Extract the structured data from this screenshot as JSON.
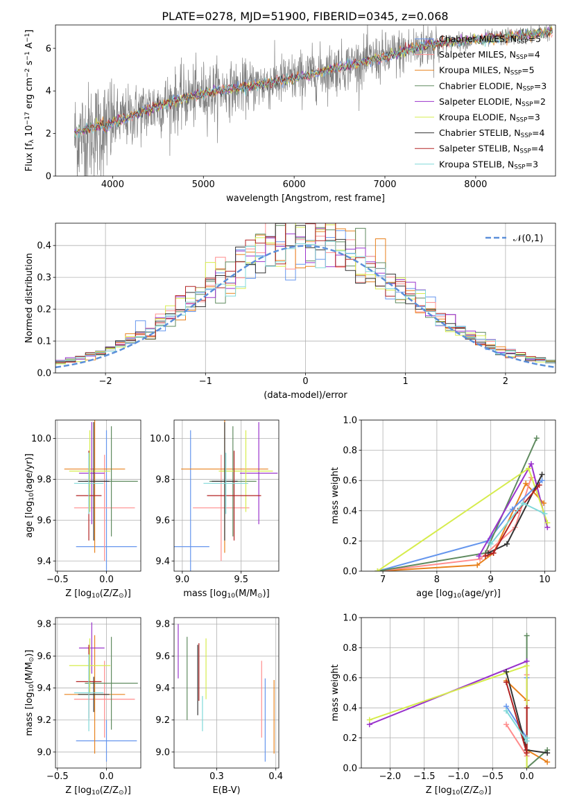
{
  "title": "PLATE=0278, MJD=51900, FIBERID=0345, z=0.068",
  "palette": [
    "#6495ed",
    "#ff8c8c",
    "#e8811c",
    "#5f8a5f",
    "#9932cc",
    "#d6ec4c",
    "#333333",
    "#b22222",
    "#7fd8d8",
    "#7f7f7f"
  ],
  "chart_data": [
    {
      "id": "spectrum",
      "type": "line",
      "xlabel": "wavelength [Angstrom, rest frame]",
      "ylabel": "Flux [f$_\\lambda$ 10$^{-17}$ erg cm$^{-2}$ s$^{-1}$ A$^{-1}$]",
      "xlim": [
        3370,
        8880
      ],
      "ylim": [
        0,
        7.1
      ],
      "xticks": [
        4000,
        5000,
        6000,
        7000,
        8000
      ],
      "yticks": [
        0,
        2,
        4,
        6
      ],
      "data_color": "#7f7f7f",
      "observed_trend": [
        [
          3580,
          1.8
        ],
        [
          3900,
          2.2
        ],
        [
          4000,
          2.5
        ],
        [
          4500,
          3.3
        ],
        [
          5000,
          3.9
        ],
        [
          5500,
          4.2
        ],
        [
          6000,
          4.6
        ],
        [
          6500,
          5.1
        ],
        [
          7000,
          5.6
        ],
        [
          7500,
          6.2
        ],
        [
          8000,
          6.4
        ],
        [
          8500,
          6.6
        ],
        [
          8850,
          6.8
        ]
      ],
      "legend": [
        {
          "label": "Chabrier MILES, N$_{SSP}$=5",
          "color": "#6495ed"
        },
        {
          "label": "Salpeter MILES, N$_{SSP}$=4",
          "color": "#ff8c8c"
        },
        {
          "label": "Kroupa MILES, N$_{SSP}$=5",
          "color": "#e8811c"
        },
        {
          "label": "Chabrier ELODIE, N$_{SSP}$=3",
          "color": "#5f8a5f"
        },
        {
          "label": "Salpeter ELODIE, N$_{SSP}$=2",
          "color": "#9932cc"
        },
        {
          "label": "Kroupa ELODIE, N$_{SSP}$=3",
          "color": "#d6ec4c"
        },
        {
          "label": "Chabrier STELIB, N$_{SSP}$=4",
          "color": "#333333"
        },
        {
          "label": "Salpeter STELIB, N$_{SSP}$=4",
          "color": "#b22222"
        },
        {
          "label": "Kroupa STELIB, N$_{SSP}$=3",
          "color": "#7fd8d8"
        }
      ],
      "legend_placement": "upper right"
    },
    {
      "id": "residuals",
      "type": "histogram",
      "xlabel": "(data-model)/error",
      "ylabel": "Normed distribution",
      "xlim": [
        -2.5,
        2.5
      ],
      "ylim": [
        0,
        0.47
      ],
      "xticks": [
        -2,
        -1,
        0,
        1,
        2
      ],
      "yticks": [
        0.0,
        0.1,
        0.2,
        0.3,
        0.4
      ],
      "grid": true,
      "bin_width": 0.1,
      "normal_curve": {
        "label": "$\\mathcal{N}(0,1)$",
        "color": "#5b8fd9",
        "mean": 0,
        "sigma": 1
      },
      "legend_placement": "upper right"
    },
    {
      "id": "age-vs-z",
      "type": "errorbar",
      "xlabel": "Z [log$_{10}$(Z/Z$_\\odot$)]",
      "ylabel": "age  [log$_{10}$(age/yr)]",
      "xlim": [
        -0.52,
        0.35
      ],
      "ylim": [
        9.35,
        10.09
      ],
      "xticks": [
        -0.5,
        0.0
      ],
      "xtick_labels": [
        "−0.5",
        "0.0"
      ],
      "yticks": [
        9.4,
        9.6,
        9.8,
        10.0
      ],
      "grid": true,
      "points": [
        {
          "x": 0.0,
          "y": 9.47,
          "xerr": 0.31,
          "yerr": 0.57,
          "color": "#6495ed"
        },
        {
          "x": -0.02,
          "y": 9.66,
          "xerr": 0.31,
          "yerr": 0.26,
          "color": "#ff8c8c"
        },
        {
          "x": -0.12,
          "y": 9.85,
          "xerr": 0.31,
          "yerr": 0.41,
          "color": "#e8811c"
        },
        {
          "x": 0.05,
          "y": 9.79,
          "xerr": 0.27,
          "yerr": 0.27,
          "color": "#5f8a5f"
        },
        {
          "x": -0.15,
          "y": 9.83,
          "xerr": 0.13,
          "yerr": 0.25,
          "color": "#9932cc"
        },
        {
          "x": -0.17,
          "y": 9.84,
          "xerr": 0.21,
          "yerr": 0.2,
          "color": "#d6ec4c"
        },
        {
          "x": -0.13,
          "y": 9.79,
          "xerr": 0.16,
          "yerr": 0.29,
          "color": "#333333"
        },
        {
          "x": -0.18,
          "y": 9.72,
          "xerr": 0.13,
          "yerr": 0.22,
          "color": "#b22222"
        },
        {
          "x": -0.18,
          "y": 9.78,
          "xerr": 0.15,
          "yerr": 0.15,
          "color": "#7fd8d8"
        }
      ]
    },
    {
      "id": "age-vs-mass",
      "type": "errorbar",
      "xlabel": "mass [log$_{10}$(M/M$_\\odot$)]",
      "ylabel": "",
      "xlim": [
        8.93,
        9.82
      ],
      "ylim": [
        9.35,
        10.09
      ],
      "xticks": [
        9.0,
        9.5
      ],
      "yticks": [
        9.4,
        9.6,
        9.8,
        10.0
      ],
      "grid": true,
      "points": [
        {
          "x": 9.07,
          "y": 9.47,
          "xerr": 0.16,
          "yerr": 0.57,
          "color": "#6495ed"
        },
        {
          "x": 9.33,
          "y": 9.66,
          "xerr": 0.24,
          "yerr": 0.26,
          "color": "#ff8c8c"
        },
        {
          "x": 9.36,
          "y": 9.85,
          "xerr": 0.37,
          "yerr": 0.41,
          "color": "#e8811c"
        },
        {
          "x": 9.43,
          "y": 9.79,
          "xerr": 0.2,
          "yerr": 0.27,
          "color": "#5f8a5f"
        },
        {
          "x": 9.65,
          "y": 9.83,
          "xerr": 0.16,
          "yerr": 0.25,
          "color": "#9932cc"
        },
        {
          "x": 9.54,
          "y": 9.84,
          "xerr": 0.23,
          "yerr": 0.2,
          "color": "#d6ec4c"
        },
        {
          "x": 9.36,
          "y": 9.79,
          "xerr": 0.11,
          "yerr": 0.29,
          "color": "#333333"
        },
        {
          "x": 9.44,
          "y": 9.72,
          "xerr": 0.23,
          "yerr": 0.22,
          "color": "#b22222"
        },
        {
          "x": 9.37,
          "y": 9.78,
          "xerr": 0.19,
          "yerr": 0.15,
          "color": "#7fd8d8"
        }
      ]
    },
    {
      "id": "weight-vs-age",
      "type": "line",
      "xlabel": "age  [log$_{10}$(age/yr)]",
      "ylabel": "mass weight",
      "xlim": [
        6.6,
        10.2
      ],
      "ylim": [
        0,
        1.0
      ],
      "xticks": [
        7,
        8,
        9,
        10
      ],
      "yticks": [
        0.0,
        0.2,
        0.4,
        0.6,
        0.8,
        1.0
      ],
      "grid": true,
      "series": [
        {
          "color": "#e8811c",
          "x": [
            6.9,
            8.75,
            9.05,
            9.65,
            9.98
          ],
          "y": [
            0.0,
            0.04,
            0.12,
            0.58,
            0.45
          ]
        },
        {
          "color": "#ff8c8c",
          "x": [
            6.9,
            8.8,
            9.45,
            9.75
          ],
          "y": [
            0.0,
            0.08,
            0.29,
            0.62
          ]
        },
        {
          "color": "#6495ed",
          "x": [
            6.9,
            8.95,
            9.4,
            9.95
          ],
          "y": [
            0.0,
            0.2,
            0.41,
            0.6
          ]
        },
        {
          "color": "#5f8a5f",
          "x": [
            6.9,
            8.9,
            9.85
          ],
          "y": [
            0.0,
            0.12,
            0.88
          ]
        },
        {
          "color": "#9932cc",
          "x": [
            8.78,
            9.75,
            10.05
          ],
          "y": [
            0.1,
            0.71,
            0.29
          ]
        },
        {
          "color": "#d6ec4c",
          "x": [
            6.9,
            9.7,
            10.05
          ],
          "y": [
            0.0,
            0.68,
            0.32
          ]
        },
        {
          "color": "#333333",
          "x": [
            8.95,
            9.3,
            9.95
          ],
          "y": [
            0.12,
            0.18,
            0.64
          ]
        },
        {
          "color": "#b22222",
          "x": [
            8.9,
            9.05,
            9.5,
            9.9
          ],
          "y": [
            0.1,
            0.12,
            0.4,
            0.57
          ]
        },
        {
          "color": "#7fd8d8",
          "x": [
            9.0,
            9.6,
            10.0
          ],
          "y": [
            0.18,
            0.45,
            0.38
          ]
        }
      ]
    },
    {
      "id": "mass-vs-z",
      "type": "errorbar",
      "xlabel": "Z [log$_{10}$(Z/Z$_\\odot$)]",
      "ylabel": "mass [log$_{10}$(M/M$_\\odot$)]",
      "xlim": [
        -0.52,
        0.35
      ],
      "ylim": [
        8.9,
        9.84
      ],
      "xticks": [
        -0.5,
        0.0
      ],
      "xtick_labels": [
        "−0.5",
        "0.0"
      ],
      "yticks": [
        9.0,
        9.2,
        9.4,
        9.6,
        9.8
      ],
      "grid": true,
      "points": [
        {
          "x": 0.0,
          "y": 9.07,
          "xerr": 0.31,
          "yerr": 0.13,
          "color": "#6495ed"
        },
        {
          "x": -0.02,
          "y": 9.33,
          "xerr": 0.31,
          "yerr": 0.24,
          "color": "#ff8c8c"
        },
        {
          "x": -0.12,
          "y": 9.36,
          "xerr": 0.31,
          "yerr": 0.37,
          "color": "#e8811c"
        },
        {
          "x": 0.05,
          "y": 9.43,
          "xerr": 0.27,
          "yerr": 0.29,
          "color": "#5f8a5f"
        },
        {
          "x": -0.15,
          "y": 9.65,
          "xerr": 0.13,
          "yerr": 0.16,
          "color": "#9932cc"
        },
        {
          "x": -0.17,
          "y": 9.54,
          "xerr": 0.21,
          "yerr": 0.17,
          "color": "#d6ec4c"
        },
        {
          "x": -0.13,
          "y": 9.36,
          "xerr": 0.16,
          "yerr": 0.11,
          "color": "#333333"
        },
        {
          "x": -0.18,
          "y": 9.44,
          "xerr": 0.13,
          "yerr": 0.23,
          "color": "#b22222"
        },
        {
          "x": -0.18,
          "y": 9.37,
          "xerr": 0.15,
          "yerr": 0.24,
          "color": "#7fd8d8"
        }
      ]
    },
    {
      "id": "mass-vs-ebv",
      "type": "errorbar",
      "xlabel": "E(B-V)",
      "ylabel": "",
      "xlim": [
        0.228,
        0.405
      ],
      "ylim": [
        8.9,
        9.84
      ],
      "xticks": [
        0.3,
        0.4
      ],
      "yticks": [
        9.0,
        9.2,
        9.4,
        9.6,
        9.8
      ],
      "grid": true,
      "points": [
        {
          "x": 0.382,
          "y": 9.2,
          "xerr": 0,
          "yerr": 0.26,
          "color": "#6495ed"
        },
        {
          "x": 0.376,
          "y": 9.33,
          "xerr": 0,
          "yerr": 0.24,
          "color": "#ff8c8c"
        },
        {
          "x": 0.397,
          "y": 9.22,
          "xerr": 0,
          "yerr": 0.23,
          "color": "#e8811c"
        },
        {
          "x": 0.25,
          "y": 9.46,
          "xerr": 0,
          "yerr": 0.26,
          "color": "#5f8a5f"
        },
        {
          "x": 0.235,
          "y": 9.63,
          "xerr": 0,
          "yerr": 0.17,
          "color": "#9932cc"
        },
        {
          "x": 0.282,
          "y": 9.52,
          "xerr": 0,
          "yerr": 0.19,
          "color": "#d6ec4c"
        },
        {
          "x": 0.268,
          "y": 9.45,
          "xerr": 0,
          "yerr": 0.22,
          "color": "#333333"
        },
        {
          "x": 0.27,
          "y": 9.5,
          "xerr": 0,
          "yerr": 0.18,
          "color": "#b22222"
        },
        {
          "x": 0.276,
          "y": 9.24,
          "xerr": 0,
          "yerr": 0.11,
          "color": "#7fd8d8"
        }
      ]
    },
    {
      "id": "weight-vs-z",
      "type": "line",
      "xlabel": "Z [log$_{10}$(Z/Z$_\\odot$)]",
      "ylabel": "mass weight",
      "xlim": [
        -2.42,
        0.42
      ],
      "ylim": [
        0,
        1.0
      ],
      "xticks": [
        -2.0,
        -1.5,
        -1.0,
        -0.5,
        0.0
      ],
      "xtick_labels": [
        "−2.0",
        "−1.5",
        "−1.0",
        "−0.5",
        "0.0"
      ],
      "yticks": [
        0.0,
        0.2,
        0.4,
        0.6,
        0.8,
        1.0
      ],
      "grid": true,
      "series": [
        {
          "color": "#e8811c",
          "x": [
            -0.3,
            0.0,
            0.0,
            0.3
          ],
          "y": [
            0.58,
            0.45,
            0.12,
            0.04
          ]
        },
        {
          "color": "#ff8c8c",
          "x": [
            -0.3,
            0.0,
            0.0
          ],
          "y": [
            0.29,
            0.08,
            0.62
          ]
        },
        {
          "color": "#6495ed",
          "x": [
            -0.3,
            0.0,
            0.0
          ],
          "y": [
            0.41,
            0.2,
            0.6
          ]
        },
        {
          "color": "#5f8a5f",
          "x": [
            0.0,
            0.0,
            0.3
          ],
          "y": [
            0.88,
            0.0,
            0.12
          ]
        },
        {
          "color": "#9932cc",
          "x": [
            -2.3,
            0.0,
            0.0
          ],
          "y": [
            0.29,
            0.71,
            0.1
          ]
        },
        {
          "color": "#d6ec4c",
          "x": [
            -2.3,
            0.0,
            0.0
          ],
          "y": [
            0.32,
            0.68,
            0.0
          ]
        },
        {
          "color": "#333333",
          "x": [
            -0.3,
            0.0,
            0.3
          ],
          "y": [
            0.64,
            0.12,
            0.1
          ]
        },
        {
          "color": "#b22222",
          "x": [
            -0.3,
            0.0,
            0.0
          ],
          "y": [
            0.57,
            0.1,
            0.4
          ]
        },
        {
          "color": "#7fd8d8",
          "x": [
            -0.3,
            0.0,
            0.0
          ],
          "y": [
            0.38,
            0.18,
            0.2
          ]
        }
      ]
    }
  ]
}
